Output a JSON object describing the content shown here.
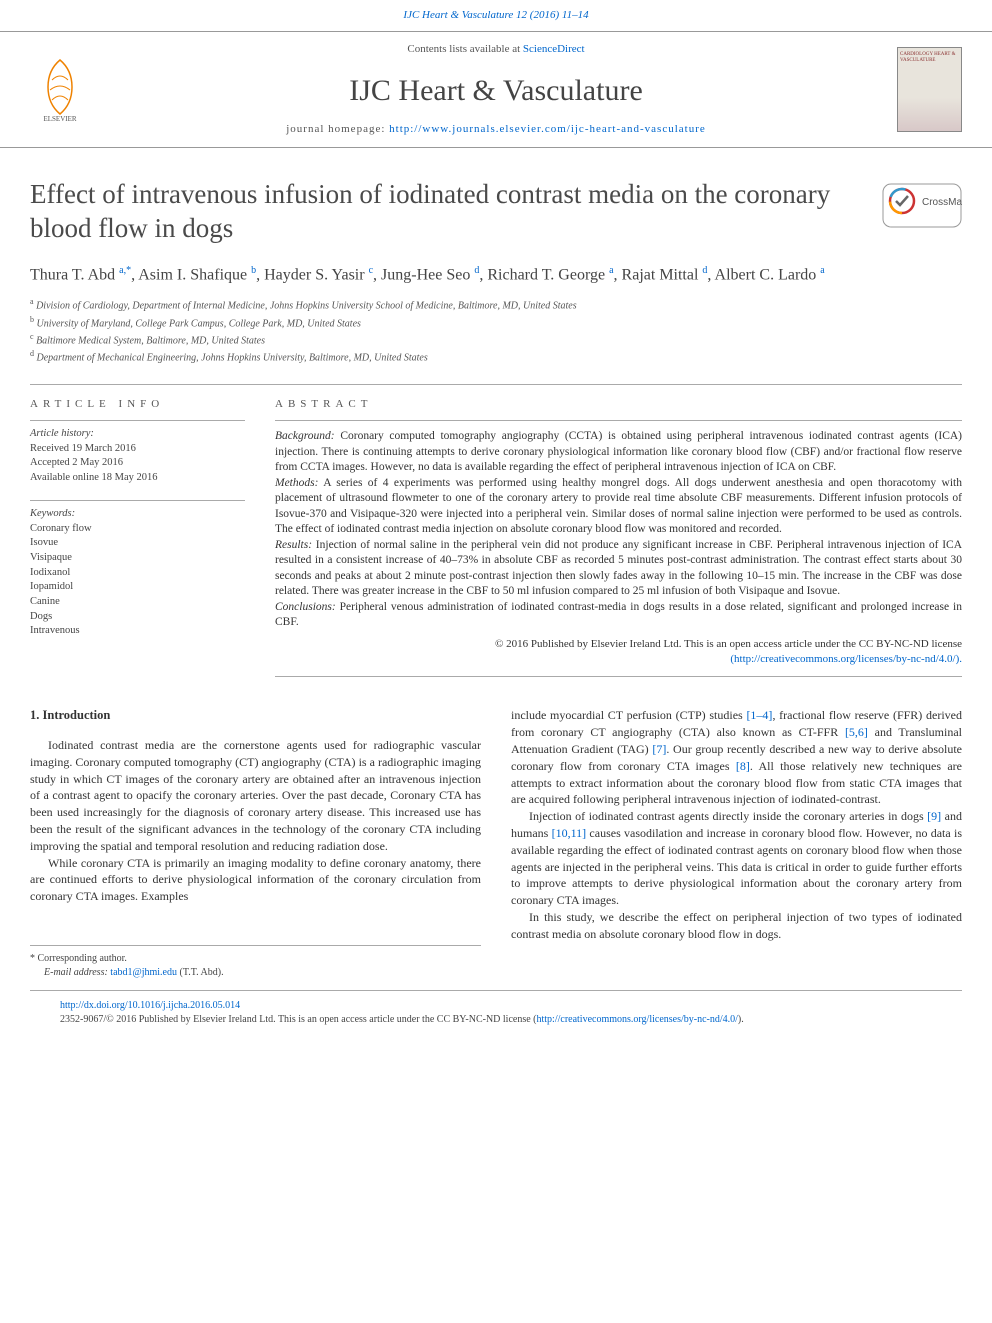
{
  "header": {
    "citation": "IJC Heart & Vasculature 12 (2016) 11–14",
    "contents_text": "Contents lists available at ",
    "contents_link": "ScienceDirect",
    "journal_name": "IJC Heart & Vasculature",
    "homepage_label": "journal homepage: ",
    "homepage_url": "http://www.journals.elsevier.com/ijc-heart-and-vasculature",
    "cover_text": "CARDIOLOGY HEART & VASCULATURE"
  },
  "article": {
    "title": "Effect of intravenous infusion of iodinated contrast media on the coronary blood flow in dogs",
    "crossmark_label": "CrossMark",
    "authors_html": "Thura T. Abd <sup>a,*</sup>, Asim I. Shafique <sup>b</sup>, Hayder S. Yasir <sup>c</sup>, Jung-Hee Seo <sup>d</sup>, Richard T. George <sup>a</sup>, Rajat Mittal <sup>d</sup>, Albert C. Lardo <sup>a</sup>",
    "affiliations": [
      {
        "sup": "a",
        "text": "Division of Cardiology, Department of Internal Medicine, Johns Hopkins University School of Medicine, Baltimore, MD, United States"
      },
      {
        "sup": "b",
        "text": "University of Maryland, College Park Campus, College Park, MD, United States"
      },
      {
        "sup": "c",
        "text": "Baltimore Medical System, Baltimore, MD, United States"
      },
      {
        "sup": "d",
        "text": "Department of Mechanical Engineering, Johns Hopkins University, Baltimore, MD, United States"
      }
    ]
  },
  "info": {
    "heading": "ARTICLE INFO",
    "history_label": "Article history:",
    "history": [
      "Received 19 March 2016",
      "Accepted 2 May 2016",
      "Available online 18 May 2016"
    ],
    "keywords_label": "Keywords:",
    "keywords": [
      "Coronary flow",
      "Isovue",
      "Visipaque",
      "Iodixanol",
      "Iopamidol",
      "Canine",
      "Dogs",
      "Intravenous"
    ]
  },
  "abstract": {
    "heading": "ABSTRACT",
    "background_label": "Background:",
    "background": "Coronary computed tomography angiography (CCTA) is obtained using peripheral intravenous iodinated contrast agents (ICA) injection. There is continuing attempts to derive coronary physiological information like coronary blood flow (CBF) and/or fractional flow reserve from CCTA images. However, no data is available regarding the effect of peripheral intravenous injection of ICA on CBF.",
    "methods_label": "Methods:",
    "methods": "A series of 4 experiments was performed using healthy mongrel dogs. All dogs underwent anesthesia and open thoracotomy with placement of ultrasound flowmeter to one of the coronary artery to provide real time absolute CBF measurements. Different infusion protocols of Isovue-370 and Visipaque-320 were injected into a peripheral vein. Similar doses of normal saline injection were performed to be used as controls. The effect of iodinated contrast media injection on absolute coronary blood flow was monitored and recorded.",
    "results_label": "Results:",
    "results": "Injection of normal saline in the peripheral vein did not produce any significant increase in CBF. Peripheral intravenous injection of ICA resulted in a consistent increase of 40–73% in absolute CBF as recorded 5 minutes post-contrast administration. The contrast effect starts about 30 seconds and peaks at about 2 minute post-contrast injection then slowly fades away in the following 10–15 min. The increase in the CBF was dose related. There was greater increase in the CBF to 50 ml infusion compared to 25 ml infusion of both Visipaque and Isovue.",
    "conclusions_label": "Conclusions:",
    "conclusions": "Peripheral venous administration of iodinated contrast-media in dogs results in a dose related, significant and prolonged increase in CBF.",
    "copyright": "© 2016 Published by Elsevier Ireland Ltd. This is an open access article under the CC BY-NC-ND license",
    "license_url": "(http://creativecommons.org/licenses/by-nc-nd/4.0/)."
  },
  "body": {
    "section1_heading": "1. Introduction",
    "para1": "Iodinated contrast media are the cornerstone agents used for radiographic vascular imaging. Coronary computed tomography (CT) angiography (CTA) is a radiographic imaging study in which CT images of the coronary artery are obtained after an intravenous injection of a contrast agent to opacify the coronary arteries. Over the past decade, Coronary CTA has been used increasingly for the diagnosis of coronary artery disease. This increased use has been the result of the significant advances in the technology of the coronary CTA including improving the spatial and temporal resolution and reducing radiation dose.",
    "para2": "While coronary CTA is primarily an imaging modality to define coronary anatomy, there are continued efforts to derive physiological information of the coronary circulation from coronary CTA images. Examples",
    "para3_prefix": "include myocardial CT perfusion (CTP) studies ",
    "ref1": "[1–4]",
    "para3_mid1": ", fractional flow reserve (FFR) derived from coronary CT angiography (CTA) also known as CT-FFR ",
    "ref2": "[5,6]",
    "para3_mid2": " and Transluminal Attenuation Gradient (TAG) ",
    "ref3": "[7]",
    "para3_mid3": ". Our group recently described a new way to derive absolute coronary flow from coronary CTA images ",
    "ref4": "[8]",
    "para3_suffix": ". All those relatively new techniques are attempts to extract information about the coronary blood flow from static CTA images that are acquired following peripheral intravenous injection of iodinated-contrast.",
    "para4_prefix": "Injection of iodinated contrast agents directly inside the coronary arteries in dogs ",
    "ref5": "[9]",
    "para4_mid1": " and humans ",
    "ref6": "[10,11]",
    "para4_suffix": " causes vasodilation and increase in coronary blood flow. However, no data is available regarding the effect of iodinated contrast agents on coronary blood flow when those agents are injected in the peripheral veins. This data is critical in order to guide further efforts to improve attempts to derive physiological information about the coronary artery from coronary CTA images.",
    "para5": "In this study, we describe the effect on peripheral injection of two types of iodinated contrast media on absolute coronary blood flow in dogs.",
    "corr_label": "* Corresponding author.",
    "email_label": "E-mail address:",
    "email": "tabd1@jhmi.edu",
    "email_suffix": "(T.T. Abd)."
  },
  "footer": {
    "doi": "http://dx.doi.org/10.1016/j.ijcha.2016.05.014",
    "issn_line": "2352-9067/© 2016 Published by Elsevier Ireland Ltd. This is an open access article under the CC BY-NC-ND license (",
    "license": "http://creativecommons.org/licenses/by-nc-nd/4.0/",
    "close": ")."
  },
  "colors": {
    "link": "#0066cc",
    "text": "#333333",
    "heading": "#4a4a4a",
    "border": "#aaaaaa",
    "elsevier_orange": "#ef8200"
  }
}
